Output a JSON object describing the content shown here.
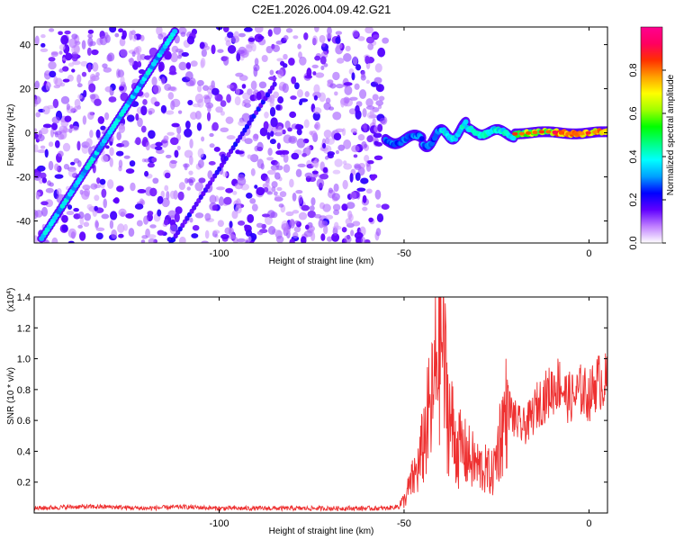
{
  "title": "C2E1.2026.004.09.42.G21",
  "chart_data": [
    {
      "type": "heatmap",
      "name": "spectrogram",
      "xlabel": "Height of straight line (km)",
      "ylabel": "Frequency (Hz)",
      "xlim": [
        -150,
        5
      ],
      "ylim": [
        -50,
        48
      ],
      "xticks": [
        -100,
        -50,
        0
      ],
      "yticks": [
        -40,
        -20,
        0,
        20,
        40
      ],
      "colorbar": {
        "label": "Normalized spectral amplitude",
        "range": [
          0,
          1
        ],
        "ticks": [
          0.0,
          0.2,
          0.4,
          0.6,
          0.8
        ],
        "colors": [
          "#ffffff",
          "#c080ff",
          "#6000ff",
          "#0000ff",
          "#00a0ff",
          "#00ffff",
          "#00ff80",
          "#00ff00",
          "#a0ff00",
          "#ffff00",
          "#ffa000",
          "#ff3000",
          "#ff0060",
          "#ff0090"
        ]
      },
      "features": [
        {
          "name": "strong descending trace",
          "x_start": -148,
          "f_start": -48,
          "x_end": -112,
          "f_end": 46,
          "amplitude": 0.4
        },
        {
          "name": "weak descending trace",
          "x_start": -113,
          "f_start": -50,
          "x_end": -85,
          "f_end": 22,
          "amplitude": 0.25
        },
        {
          "name": "scattered noise",
          "x_from": -150,
          "x_to": -55,
          "amplitude": 0.15
        },
        {
          "name": "near-zero carrier",
          "x_from": -55,
          "x_to": 5,
          "f_center": 0,
          "amplitude_max": 0.9
        }
      ]
    },
    {
      "type": "line",
      "name": "snr",
      "xlabel": "Height of straight line (km)",
      "ylabel": "SNR (10 * v/v)",
      "yscale_label": "(x10^4)",
      "yscale_base": "x10",
      "yscale_exp": "4",
      "xlim": [
        -150,
        5
      ],
      "ylim": [
        0,
        1.4
      ],
      "xticks": [
        -100,
        -50,
        0
      ],
      "yticks": [
        0.2,
        0.4,
        0.6,
        0.8,
        1.0,
        1.2,
        1.4
      ],
      "series": [
        {
          "name": "SNR",
          "color": "#ee3030",
          "x": [
            -150,
            -140,
            -130,
            -120,
            -110,
            -100,
            -90,
            -80,
            -70,
            -60,
            -55,
            -52,
            -50,
            -48,
            -46,
            -44,
            -42,
            -41,
            -40,
            -39,
            -38,
            -36,
            -34,
            -32,
            -30,
            -28,
            -26,
            -24,
            -22,
            -20,
            -18,
            -16,
            -14,
            -12,
            -10,
            -8,
            -6,
            -4,
            -2,
            0,
            2,
            4,
            5
          ],
          "values": [
            0.03,
            0.04,
            0.04,
            0.03,
            0.04,
            0.03,
            0.03,
            0.03,
            0.03,
            0.03,
            0.03,
            0.04,
            0.08,
            0.2,
            0.3,
            0.55,
            0.75,
            1.1,
            1.2,
            0.9,
            0.65,
            0.45,
            0.4,
            0.35,
            0.3,
            0.28,
            0.25,
            0.5,
            0.7,
            0.6,
            0.55,
            0.6,
            0.7,
            0.75,
            0.8,
            0.85,
            0.75,
            0.75,
            0.8,
            0.75,
            0.85,
            0.85,
            0.85
          ]
        }
      ]
    }
  ]
}
